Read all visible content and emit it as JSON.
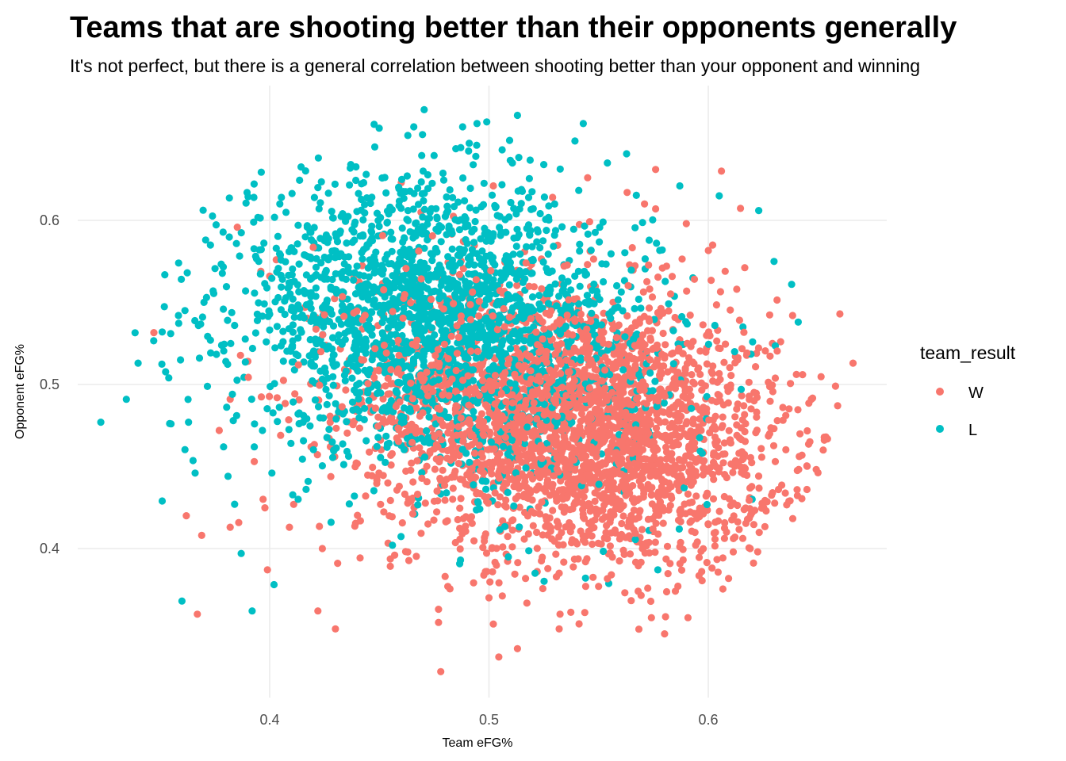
{
  "chart_data": {
    "type": "scatter",
    "title": "Teams that are shooting better than their opponents generally",
    "subtitle": "It's not perfect, but there is a general correlation between shooting better than your opponent and winning",
    "xlabel": "Team eFG%",
    "ylabel": "Opponent eFG%",
    "xlim": [
      0.31,
      0.68
    ],
    "ylim": [
      0.31,
      0.68
    ],
    "x_ticks": [
      0.4,
      0.5,
      0.6
    ],
    "x_tick_labels": [
      "0.4",
      "0.5",
      "0.6"
    ],
    "y_ticks": [
      0.4,
      0.5,
      0.6
    ],
    "y_tick_labels": [
      "0.4",
      "0.5",
      "0.6"
    ],
    "grid": true,
    "legend": {
      "title": "team_result",
      "position": "right"
    },
    "series": [
      {
        "name": "W",
        "color": "#F8766D",
        "values": [
          [
            0.478,
            0.325
          ],
          [
            0.513,
            0.339
          ],
          [
            0.532,
            0.351
          ],
          [
            0.502,
            0.354
          ],
          [
            0.477,
            0.355
          ],
          [
            0.43,
            0.351
          ],
          [
            0.367,
            0.36
          ],
          [
            0.422,
            0.362
          ],
          [
            0.477,
            0.363
          ],
          [
            0.5,
            0.37
          ],
          [
            0.585,
            0.374
          ],
          [
            0.399,
            0.387
          ],
          [
            0.362,
            0.42
          ],
          [
            0.369,
            0.408
          ],
          [
            0.645,
            0.436
          ],
          [
            0.632,
            0.436
          ],
          [
            0.659,
            0.487
          ],
          [
            0.658,
            0.499
          ],
          [
            0.666,
            0.513
          ],
          [
            0.66,
            0.543
          ],
          [
            0.647,
            0.491
          ],
          [
            0.643,
            0.506
          ],
          [
            0.62,
            0.422
          ],
          [
            0.595,
            0.404
          ],
          [
            0.377,
            0.472
          ],
          [
            0.382,
            0.491
          ],
          [
            0.382,
            0.413
          ],
          [
            0.606,
            0.63
          ],
          [
            0.576,
            0.631
          ],
          [
            0.46,
            0.623
          ],
          [
            0.545,
            0.626
          ],
          [
            0.4,
            0.566
          ],
          [
            0.403,
            0.576
          ],
          [
            0.396,
            0.569
          ],
          [
            0.634,
            0.486
          ],
          [
            0.628,
            0.47
          ],
          [
            0.614,
            0.458
          ],
          [
            0.599,
            0.432
          ],
          [
            0.587,
            0.401
          ],
          [
            0.57,
            0.4
          ],
          [
            0.544,
            0.392
          ],
          [
            0.522,
            0.386
          ],
          [
            0.48,
            0.383
          ],
          [
            0.457,
            0.396
          ],
          [
            0.431,
            0.391
          ],
          [
            0.424,
            0.4
          ],
          [
            0.409,
            0.413
          ],
          [
            0.397,
            0.43
          ],
          [
            0.393,
            0.453
          ],
          [
            0.405,
            0.469
          ],
          [
            0.622,
            0.519
          ],
          [
            0.613,
            0.558
          ],
          [
            0.602,
            0.585
          ],
          [
            0.59,
            0.598
          ],
          [
            0.576,
            0.607
          ],
          [
            0.563,
            0.617
          ],
          [
            0.529,
            0.614
          ],
          [
            0.502,
            0.621
          ],
          [
            0.469,
            0.605
          ]
        ]
      },
      {
        "name": "L",
        "color": "#00BFC4",
        "values": [
          [
            0.323,
            0.477
          ],
          [
            0.34,
            0.513
          ],
          [
            0.351,
            0.532
          ],
          [
            0.354,
            0.504
          ],
          [
            0.355,
            0.476
          ],
          [
            0.351,
            0.429
          ],
          [
            0.36,
            0.368
          ],
          [
            0.363,
            0.477
          ],
          [
            0.366,
            0.446
          ],
          [
            0.373,
            0.585
          ],
          [
            0.387,
            0.397
          ],
          [
            0.392,
            0.362
          ],
          [
            0.402,
            0.378
          ],
          [
            0.513,
            0.664
          ],
          [
            0.499,
            0.66
          ],
          [
            0.488,
            0.657
          ],
          [
            0.543,
            0.659
          ],
          [
            0.491,
            0.647
          ],
          [
            0.506,
            0.643
          ],
          [
            0.437,
            0.634
          ],
          [
            0.459,
            0.609
          ],
          [
            0.472,
            0.601
          ],
          [
            0.514,
            0.607
          ],
          [
            0.552,
            0.599
          ],
          [
            0.579,
            0.582
          ],
          [
            0.593,
            0.565
          ],
          [
            0.603,
            0.536
          ],
          [
            0.612,
            0.52
          ],
          [
            0.623,
            0.606
          ],
          [
            0.63,
            0.575
          ],
          [
            0.638,
            0.561
          ],
          [
            0.641,
            0.538
          ],
          [
            0.615,
            0.497
          ],
          [
            0.62,
            0.43
          ],
          [
            0.589,
            0.437
          ],
          [
            0.573,
            0.411
          ],
          [
            0.577,
            0.387
          ],
          [
            0.544,
            0.382
          ],
          [
            0.521,
            0.385
          ],
          [
            0.487,
            0.393
          ],
          [
            0.456,
            0.402
          ],
          [
            0.428,
            0.416
          ],
          [
            0.413,
            0.43
          ],
          [
            0.401,
            0.446
          ],
          [
            0.393,
            0.462
          ],
          [
            0.384,
            0.427
          ],
          [
            0.381,
            0.444
          ],
          [
            0.379,
            0.462
          ],
          [
            0.383,
            0.494
          ],
          [
            0.38,
            0.514
          ],
          [
            0.384,
            0.536
          ],
          [
            0.389,
            0.557
          ],
          [
            0.395,
            0.575
          ],
          [
            0.403,
            0.583
          ],
          [
            0.413,
            0.597
          ],
          [
            0.422,
            0.62
          ],
          [
            0.444,
            0.628
          ],
          [
            0.47,
            0.63
          ],
          [
            0.494,
            0.639
          ],
          [
            0.525,
            0.634
          ],
          [
            0.554,
            0.635
          ],
          [
            0.587,
            0.621
          ],
          [
            0.605,
            0.615
          ]
        ]
      }
    ],
    "cloud": {
      "W": {
        "count": 2200,
        "x_mean": 0.537,
        "x_sd": 0.047,
        "y_mean": 0.477,
        "y_sd": 0.043,
        "corr": -0.2
      },
      "L": {
        "count": 2200,
        "x_mean": 0.477,
        "x_sd": 0.047,
        "y_mean": 0.537,
        "y_sd": 0.043,
        "corr": -0.2
      }
    }
  }
}
